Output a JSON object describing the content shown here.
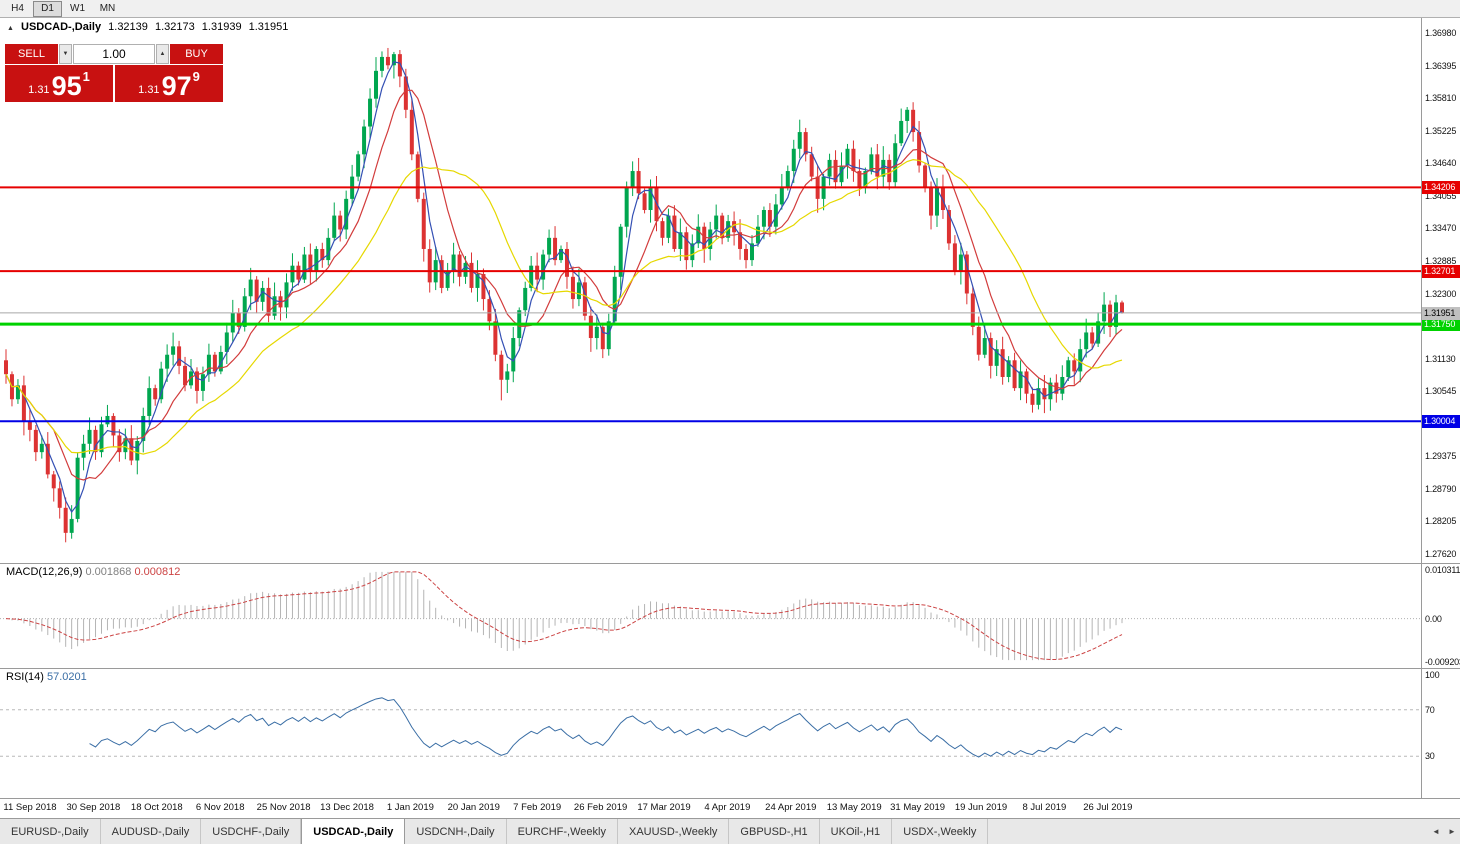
{
  "toolbar": {
    "buttons": [
      "H4",
      "D1",
      "W1",
      "MN"
    ],
    "active": "D1"
  },
  "icons": {
    "collapse": "▲",
    "spin_down": "▼",
    "spin_up": "▲",
    "tab_left": "◄",
    "tab_right": "►"
  },
  "chart": {
    "symbol": "USDCAD-,Daily",
    "ohlc_line": {
      "open": "1.32139",
      "high": "1.32173",
      "low": "1.31939",
      "close": "1.31951"
    },
    "one_click": {
      "sell_label": "SELL",
      "buy_label": "BUY",
      "volume": "1.00",
      "sell_price": {
        "small": "1.31",
        "big": "95",
        "sup": "1"
      },
      "buy_price": {
        "small": "1.31",
        "big": "97",
        "sup": "9"
      }
    },
    "price_axis": {
      "top_price": 1.3698,
      "bottom_price": 1.2762,
      "ticks": [
        "1.36980",
        "1.36395",
        "1.35810",
        "1.35225",
        "1.34640",
        "1.34055",
        "1.33470",
        "1.32885",
        "1.32300",
        "1.31715",
        "1.31130",
        "1.30545",
        "1.29960",
        "1.29375",
        "1.28790",
        "1.28205",
        "1.27620"
      ]
    },
    "levels": [
      {
        "price": 1.34206,
        "label": "1.34206",
        "color": "#e60000",
        "width": 2
      },
      {
        "price": 1.32701,
        "label": "1.32701",
        "color": "#e60000",
        "width": 2
      },
      {
        "price": 1.3175,
        "label": "1.31750",
        "color": "#00d200",
        "width": 3
      },
      {
        "price": 1.30004,
        "label": "1.30004",
        "color": "#0000e6",
        "width": 2
      }
    ],
    "current_price": {
      "price": 1.31951,
      "label": "1.31951"
    }
  },
  "chart_data": {
    "type": "candlestick",
    "symbol": "USDCAD",
    "timeframe": "Daily",
    "x_labels": [
      "11 Sep 2018",
      "30 Sep 2018",
      "18 Oct 2018",
      "6 Nov 2018",
      "25 Nov 2018",
      "13 Dec 2018",
      "1 Jan 2019",
      "20 Jan 2019",
      "7 Feb 2019",
      "26 Feb 2019",
      "17 Mar 2019",
      "4 Apr 2019",
      "24 Apr 2019",
      "13 May 2019",
      "31 May 2019",
      "19 Jun 2019",
      "8 Jul 2019",
      "26 Jul 2019"
    ],
    "first_open": 1.311,
    "closes": [
      1.3085,
      1.304,
      1.3065,
      1.3,
      1.2985,
      1.2945,
      1.296,
      1.2905,
      1.288,
      1.2845,
      1.28,
      1.2825,
      1.2935,
      1.296,
      1.2985,
      1.2945,
      1.2995,
      1.301,
      1.2975,
      1.2945,
      1.297,
      1.293,
      1.2965,
      1.301,
      1.306,
      1.304,
      1.3095,
      1.312,
      1.3135,
      1.31,
      1.3065,
      1.309,
      1.3055,
      1.3085,
      1.312,
      1.309,
      1.3125,
      1.316,
      1.3195,
      1.317,
      1.3225,
      1.3255,
      1.3215,
      1.324,
      1.319,
      1.3225,
      1.3205,
      1.325,
      1.328,
      1.3255,
      1.33,
      1.327,
      1.331,
      1.329,
      1.333,
      1.337,
      1.3345,
      1.34,
      1.344,
      1.348,
      1.353,
      1.358,
      1.363,
      1.3655,
      1.364,
      1.366,
      1.362,
      1.356,
      1.348,
      1.34,
      1.331,
      1.325,
      1.329,
      1.324,
      1.327,
      1.33,
      1.326,
      1.3285,
      1.324,
      1.3265,
      1.322,
      1.318,
      1.312,
      1.3075,
      1.309,
      1.315,
      1.32,
      1.324,
      1.328,
      1.3255,
      1.33,
      1.333,
      1.329,
      1.331,
      1.326,
      1.322,
      1.325,
      1.319,
      1.315,
      1.317,
      1.313,
      1.318,
      1.326,
      1.335,
      1.342,
      1.345,
      1.341,
      1.338,
      1.342,
      1.336,
      1.333,
      1.337,
      1.331,
      1.334,
      1.329,
      1.332,
      1.335,
      1.331,
      1.3345,
      1.337,
      1.333,
      1.336,
      1.334,
      1.331,
      1.329,
      1.332,
      1.335,
      1.338,
      1.335,
      1.339,
      1.342,
      1.345,
      1.349,
      1.352,
      1.348,
      1.344,
      1.34,
      1.344,
      1.347,
      1.343,
      1.346,
      1.349,
      1.345,
      1.342,
      1.345,
      1.348,
      1.344,
      1.347,
      1.343,
      1.35,
      1.354,
      1.356,
      1.352,
      1.346,
      1.342,
      1.337,
      1.342,
      1.338,
      1.332,
      1.327,
      1.33,
      1.323,
      1.317,
      1.312,
      1.315,
      1.31,
      1.313,
      1.308,
      1.311,
      1.306,
      1.309,
      1.305,
      1.303,
      1.306,
      1.304,
      1.307,
      1.305,
      1.308,
      1.311,
      1.309,
      1.313,
      1.316,
      1.314,
      1.318,
      1.321,
      1.317,
      1.3214,
      1.3195
    ],
    "overrides": {
      "10": {
        "low": 1.2783
      },
      "65": {
        "high": 1.3664
      },
      "83": {
        "low": 1.3038
      },
      "151": {
        "high": 1.3565
      },
      "172": {
        "low": 1.3016
      },
      "187": {
        "open": 1.32139,
        "high": 1.32173,
        "low": 1.31939,
        "close": 1.31951
      }
    },
    "moving_averages": [
      {
        "period": 4,
        "color": "#3450b4"
      },
      {
        "period": 9,
        "color": "#d23c3c"
      },
      {
        "period": 21,
        "color": "#e6d800"
      }
    ],
    "colors": {
      "up": "#00a64f",
      "down": "#dc3232",
      "macd_hist": "#b4b4b4",
      "macd_signal": "#cc4444",
      "rsi_line": "#3a6ea5"
    },
    "macd": {
      "label": "MACD(12,26,9)",
      "value_main": "0.001868",
      "value_signal": "0.000812",
      "scale_max": "0.010311",
      "scale_zero": "0.00",
      "scale_min": "-0.009203",
      "params": {
        "fast": 12,
        "slow": 26,
        "signal": 9
      }
    },
    "rsi": {
      "label": "RSI(14)",
      "value": "57.0201",
      "period": 14,
      "levels": [
        70,
        30
      ],
      "scale_labels": [
        "100",
        "70",
        "30"
      ]
    }
  },
  "tabs": {
    "active_index": 3,
    "items": [
      {
        "label": "EURUSD-,Daily"
      },
      {
        "label": "AUDUSD-,Daily"
      },
      {
        "label": "USDCHF-,Daily"
      },
      {
        "label": "USDCAD-,Daily"
      },
      {
        "label": "USDCNH-,Daily"
      },
      {
        "label": "EURCHF-,Weekly"
      },
      {
        "label": "XAUUSD-,Weekly"
      },
      {
        "label": "GBPUSD-,H1"
      },
      {
        "label": "UKOil-,H1"
      },
      {
        "label": "USDX-,Weekly"
      }
    ]
  }
}
